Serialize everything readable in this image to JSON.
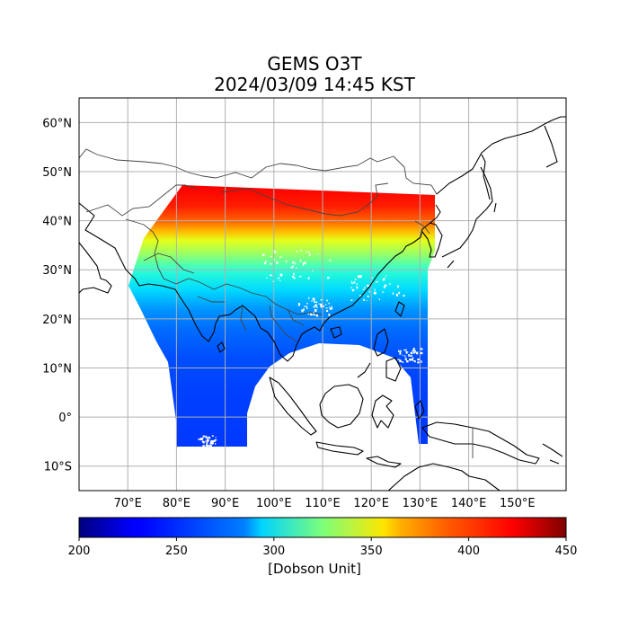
{
  "title": {
    "line1": "GEMS O3T",
    "line2": "2024/03/09 14:45 KST"
  },
  "map": {
    "lon_range": [
      60,
      160
    ],
    "lat_range": [
      -15,
      65
    ],
    "lon_ticks": [
      {
        "value": 70,
        "label": "70°E"
      },
      {
        "value": 80,
        "label": "80°E"
      },
      {
        "value": 90,
        "label": "90°E"
      },
      {
        "value": 100,
        "label": "100°E"
      },
      {
        "value": 110,
        "label": "110°E"
      },
      {
        "value": 120,
        "label": "120°E"
      },
      {
        "value": 130,
        "label": "130°E"
      },
      {
        "value": 140,
        "label": "140°E"
      },
      {
        "value": 150,
        "label": "150°E"
      }
    ],
    "lat_ticks": [
      {
        "value": 60,
        "label": "60°N"
      },
      {
        "value": 50,
        "label": "50°N"
      },
      {
        "value": 40,
        "label": "40°N"
      },
      {
        "value": 30,
        "label": "30°N"
      },
      {
        "value": 20,
        "label": "20°N"
      },
      {
        "value": 10,
        "label": "10°N"
      },
      {
        "value": 0,
        "label": "0°"
      },
      {
        "value": -10,
        "label": "10°S"
      }
    ],
    "gridlines": true,
    "gridline_color": "#b0b0b0",
    "coastline_color": "#000000",
    "border_color": "#444444"
  },
  "colorbar": {
    "colormap": "jet",
    "min": 200,
    "max": 450,
    "ticks": [
      {
        "value": 200,
        "label": "200"
      },
      {
        "value": 250,
        "label": "250"
      },
      {
        "value": 300,
        "label": "300"
      },
      {
        "value": 350,
        "label": "350"
      },
      {
        "value": 400,
        "label": "400"
      },
      {
        "value": 450,
        "label": "450"
      }
    ],
    "label": "[Dobson Unit]"
  },
  "ozone_field": {
    "description_units": "Dobson Unit",
    "lat_profile": [
      {
        "lat": -6,
        "value": 245
      },
      {
        "lat": 5,
        "value": 247
      },
      {
        "lat": 12,
        "value": 250
      },
      {
        "lat": 18,
        "value": 258
      },
      {
        "lat": 22,
        "value": 268
      },
      {
        "lat": 26,
        "value": 285
      },
      {
        "lat": 30,
        "value": 305
      },
      {
        "lat": 33,
        "value": 330
      },
      {
        "lat": 36,
        "value": 350
      },
      {
        "lat": 38,
        "value": 375
      },
      {
        "lat": 40,
        "value": 395
      },
      {
        "lat": 43,
        "value": 412
      },
      {
        "lat": 47,
        "value": 420
      }
    ]
  }
}
